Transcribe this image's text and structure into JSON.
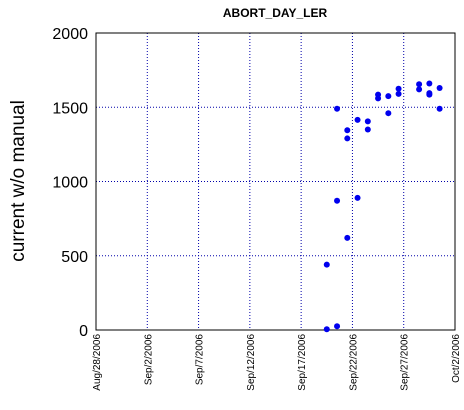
{
  "chart_data": {
    "type": "scatter",
    "title": "ABORT_DAY_LER",
    "xlabel": "",
    "ylabel": "current w/o manual",
    "xlim": [
      "2006-08-28",
      "2006-10-02"
    ],
    "ylim": [
      0,
      2000
    ],
    "x_ticks": [
      "Aug/28/2006",
      "Sep/2/2006",
      "Sep/7/2006",
      "Sep/12/2006",
      "Sep/17/2006",
      "Sep/22/2006",
      "Sep/27/2006",
      "Oct/2/2006"
    ],
    "y_ticks": [
      "0",
      "500",
      "1000",
      "1500",
      "2000"
    ],
    "grid": true,
    "marker_color": "#0000ee",
    "grid_color": "#0000aa",
    "series": [
      {
        "points": [
          {
            "x": "2006-09-19",
            "y": 440
          },
          {
            "x": "2006-09-19",
            "y": 5
          },
          {
            "x": "2006-09-20",
            "y": 25
          },
          {
            "x": "2006-09-20",
            "y": 870
          },
          {
            "x": "2006-09-20",
            "y": 1490
          },
          {
            "x": "2006-09-21",
            "y": 620
          },
          {
            "x": "2006-09-21",
            "y": 1290
          },
          {
            "x": "2006-09-21",
            "y": 1345
          },
          {
            "x": "2006-09-22",
            "y": 890
          },
          {
            "x": "2006-09-22",
            "y": 1415
          },
          {
            "x": "2006-09-23",
            "y": 1350
          },
          {
            "x": "2006-09-23",
            "y": 1405
          },
          {
            "x": "2006-09-24",
            "y": 1560
          },
          {
            "x": "2006-09-24",
            "y": 1585
          },
          {
            "x": "2006-09-25",
            "y": 1460
          },
          {
            "x": "2006-09-25",
            "y": 1575
          },
          {
            "x": "2006-09-26",
            "y": 1590
          },
          {
            "x": "2006-09-26",
            "y": 1625
          },
          {
            "x": "2006-09-28",
            "y": 1620
          },
          {
            "x": "2006-09-28",
            "y": 1655
          },
          {
            "x": "2006-09-29",
            "y": 1585
          },
          {
            "x": "2006-09-29",
            "y": 1595
          },
          {
            "x": "2006-09-29",
            "y": 1660
          },
          {
            "x": "2006-09-30",
            "y": 1490
          },
          {
            "x": "2006-09-30",
            "y": 1630
          }
        ]
      }
    ]
  }
}
